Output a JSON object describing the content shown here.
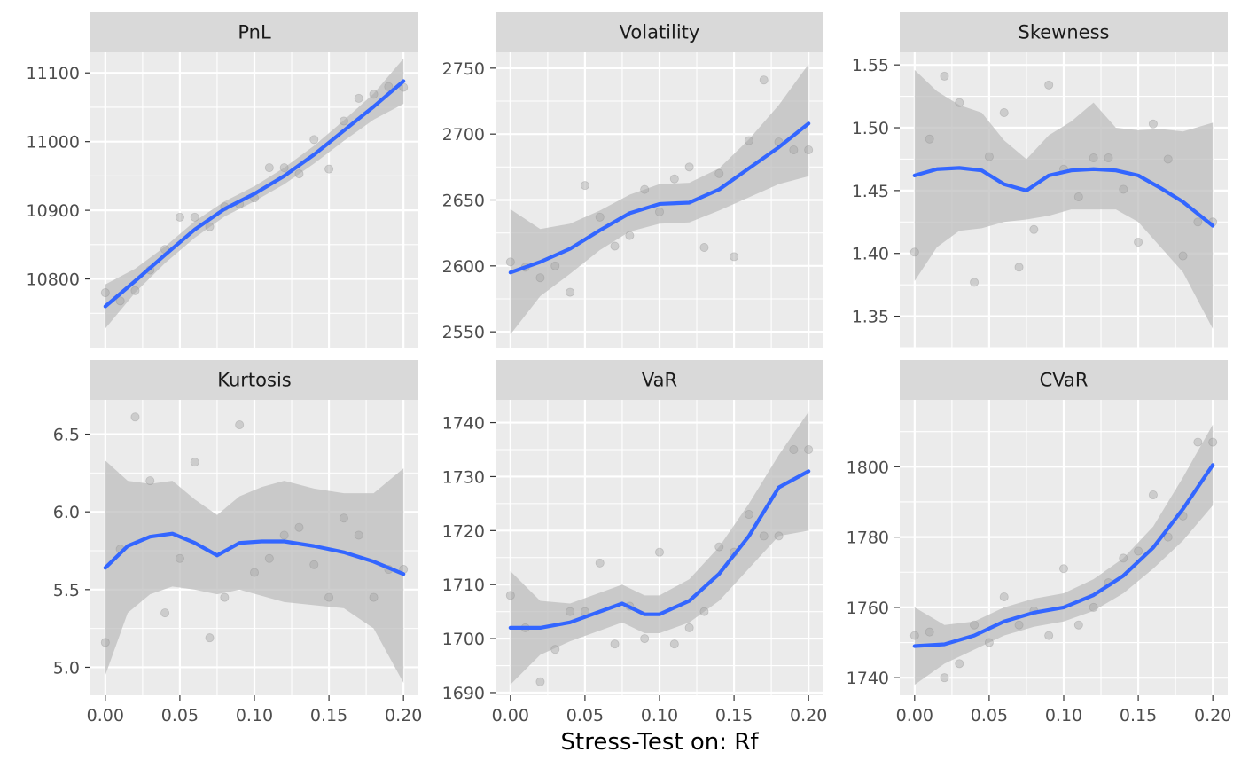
{
  "figure": {
    "xlabel": "Stress-Test on: Rf"
  },
  "colors": {
    "panel_bg": "#EBEBEB",
    "strip_bg": "#D9D9D9",
    "grid": "#FFFFFF",
    "smooth_line": "#3366FF",
    "ribbon": "#BDBDBD",
    "points": "#A6A6A6",
    "tick_text": "#4D4D4D"
  },
  "chart_data": [
    {
      "type": "scatter",
      "title": "PnL",
      "xlim": [
        -0.01,
        0.21
      ],
      "ylim": [
        10700,
        11130
      ],
      "x_ticks": [
        0.0,
        0.05,
        0.1,
        0.15,
        0.2
      ],
      "x_tick_labels": [
        "0.00",
        "0.05",
        "0.10",
        "0.15",
        "0.20"
      ],
      "y_ticks": [
        10800,
        10900,
        11000,
        11100
      ],
      "y_tick_labels": [
        "10800",
        "10900",
        "11000",
        "11100"
      ],
      "points": {
        "x": [
          0.0,
          0.01,
          0.02,
          0.03,
          0.04,
          0.05,
          0.06,
          0.07,
          0.08,
          0.09,
          0.1,
          0.11,
          0.12,
          0.13,
          0.14,
          0.15,
          0.16,
          0.17,
          0.18,
          0.19,
          0.2
        ],
        "y": [
          10780,
          10768,
          10783,
          10813,
          10843,
          10890,
          10890,
          10876,
          10905,
          10909,
          10918,
          10962,
          10962,
          10953,
          11003,
          10960,
          11030,
          11063,
          11069,
          11080,
          11079
        ]
      },
      "smooth": {
        "x": [
          0.0,
          0.02,
          0.04,
          0.06,
          0.08,
          0.1,
          0.12,
          0.14,
          0.16,
          0.18,
          0.2
        ],
        "y": [
          10760,
          10797,
          10835,
          10872,
          10902,
          10924,
          10950,
          10981,
          11016,
          11051,
          11088
        ],
        "lower": [
          10728,
          10780,
          10823,
          10860,
          10891,
          10913,
          10938,
          10968,
          11001,
          11032,
          11055
        ],
        "upper": [
          10792,
          10815,
          10847,
          10884,
          10913,
          10935,
          10962,
          10994,
          11031,
          11070,
          11121
        ]
      }
    },
    {
      "type": "scatter",
      "title": "Volatility",
      "xlim": [
        -0.01,
        0.21
      ],
      "ylim": [
        2538,
        2762
      ],
      "x_ticks": [
        0.0,
        0.05,
        0.1,
        0.15,
        0.2
      ],
      "x_tick_labels": [
        "0.00",
        "0.05",
        "0.10",
        "0.15",
        "0.20"
      ],
      "y_ticks": [
        2550,
        2600,
        2650,
        2700,
        2750
      ],
      "y_tick_labels": [
        "2550",
        "2600",
        "2650",
        "2700",
        "2750"
      ],
      "points": {
        "x": [
          0.0,
          0.01,
          0.02,
          0.03,
          0.04,
          0.05,
          0.06,
          0.07,
          0.08,
          0.09,
          0.1,
          0.11,
          0.12,
          0.13,
          0.14,
          0.15,
          0.16,
          0.17,
          0.18,
          0.19,
          0.2
        ],
        "y": [
          2603,
          2599,
          2591,
          2600,
          2580,
          2661,
          2637,
          2615,
          2623,
          2658,
          2641,
          2666,
          2675,
          2614,
          2670,
          2607,
          2695,
          2741,
          2694,
          2688,
          2688
        ]
      },
      "smooth": {
        "x": [
          0.0,
          0.02,
          0.04,
          0.06,
          0.08,
          0.1,
          0.12,
          0.14,
          0.16,
          0.18,
          0.2
        ],
        "y": [
          2595,
          2603,
          2613,
          2627,
          2640,
          2647,
          2648,
          2658,
          2674,
          2690,
          2708
        ],
        "lower": [
          2548,
          2577,
          2594,
          2612,
          2626,
          2632,
          2633,
          2642,
          2652,
          2662,
          2668
        ],
        "upper": [
          2643,
          2628,
          2632,
          2642,
          2654,
          2662,
          2663,
          2674,
          2696,
          2722,
          2753
        ]
      }
    },
    {
      "type": "scatter",
      "title": "Skewness",
      "xlim": [
        -0.01,
        0.21
      ],
      "ylim": [
        1.325,
        1.56
      ],
      "x_ticks": [
        0.0,
        0.05,
        0.1,
        0.15,
        0.2
      ],
      "x_tick_labels": [
        "0.00",
        "0.05",
        "0.10",
        "0.15",
        "0.20"
      ],
      "y_ticks": [
        1.35,
        1.4,
        1.45,
        1.5,
        1.55
      ],
      "y_tick_labels": [
        "1.35",
        "1.40",
        "1.45",
        "1.50",
        "1.55"
      ],
      "points": {
        "x": [
          0.0,
          0.01,
          0.02,
          0.03,
          0.04,
          0.05,
          0.06,
          0.07,
          0.08,
          0.09,
          0.1,
          0.11,
          0.12,
          0.13,
          0.14,
          0.15,
          0.16,
          0.17,
          0.18,
          0.19,
          0.2
        ],
        "y": [
          1.401,
          1.491,
          1.541,
          1.52,
          1.377,
          1.477,
          1.512,
          1.389,
          1.419,
          1.534,
          1.467,
          1.445,
          1.476,
          1.476,
          1.451,
          1.409,
          1.503,
          1.475,
          1.398,
          1.425,
          1.425
        ]
      },
      "smooth": {
        "x": [
          0.0,
          0.015,
          0.03,
          0.045,
          0.06,
          0.075,
          0.09,
          0.105,
          0.12,
          0.135,
          0.15,
          0.165,
          0.18,
          0.2
        ],
        "y": [
          1.462,
          1.467,
          1.468,
          1.466,
          1.455,
          1.45,
          1.462,
          1.466,
          1.467,
          1.466,
          1.462,
          1.452,
          1.441,
          1.422
        ],
        "lower": [
          1.378,
          1.405,
          1.418,
          1.42,
          1.425,
          1.427,
          1.43,
          1.435,
          1.435,
          1.435,
          1.425,
          1.405,
          1.385,
          1.34
        ],
        "upper": [
          1.546,
          1.529,
          1.518,
          1.512,
          1.49,
          1.475,
          1.494,
          1.505,
          1.52,
          1.5,
          1.498,
          1.499,
          1.497,
          1.504
        ]
      }
    },
    {
      "type": "scatter",
      "title": "Kurtosis",
      "xlim": [
        -0.01,
        0.21
      ],
      "ylim": [
        4.82,
        6.72
      ],
      "x_ticks": [
        0.0,
        0.05,
        0.1,
        0.15,
        0.2
      ],
      "x_tick_labels": [
        "0.00",
        "0.05",
        "0.10",
        "0.15",
        "0.20"
      ],
      "y_ticks": [
        5.0,
        5.5,
        6.0,
        6.5
      ],
      "y_tick_labels": [
        "5.0",
        "5.5",
        "6.0",
        "6.5"
      ],
      "points": {
        "x": [
          0.0,
          0.01,
          0.02,
          0.03,
          0.04,
          0.05,
          0.06,
          0.07,
          0.08,
          0.09,
          0.1,
          0.11,
          0.12,
          0.13,
          0.14,
          0.15,
          0.16,
          0.17,
          0.18,
          0.19,
          0.2
        ],
        "y": [
          5.16,
          5.76,
          6.61,
          6.2,
          5.35,
          5.7,
          6.32,
          5.19,
          5.45,
          6.56,
          5.61,
          5.7,
          5.85,
          5.9,
          5.66,
          5.45,
          5.96,
          5.85,
          5.45,
          5.63,
          5.63
        ]
      },
      "smooth": {
        "x": [
          0.0,
          0.015,
          0.03,
          0.045,
          0.06,
          0.075,
          0.09,
          0.105,
          0.12,
          0.14,
          0.16,
          0.18,
          0.2
        ],
        "y": [
          5.64,
          5.78,
          5.84,
          5.86,
          5.8,
          5.72,
          5.8,
          5.81,
          5.81,
          5.78,
          5.74,
          5.68,
          5.6
        ],
        "lower": [
          4.95,
          5.35,
          5.47,
          5.52,
          5.5,
          5.47,
          5.5,
          5.46,
          5.42,
          5.4,
          5.38,
          5.25,
          4.9
        ],
        "upper": [
          6.33,
          6.2,
          6.18,
          6.2,
          6.08,
          5.98,
          6.1,
          6.16,
          6.2,
          6.15,
          6.12,
          6.12,
          6.28
        ]
      }
    },
    {
      "type": "scatter",
      "title": "VaR",
      "xlim": [
        -0.01,
        0.21
      ],
      "ylim": [
        1689.5,
        1744.2
      ],
      "x_ticks": [
        0.0,
        0.05,
        0.1,
        0.15,
        0.2
      ],
      "x_tick_labels": [
        "0.00",
        "0.05",
        "0.10",
        "0.15",
        "0.20"
      ],
      "y_ticks": [
        1690,
        1700,
        1710,
        1720,
        1730,
        1740
      ],
      "y_tick_labels": [
        "1690",
        "1700",
        "1710",
        "1720",
        "1730",
        "1740"
      ],
      "points": {
        "x": [
          0.0,
          0.01,
          0.02,
          0.03,
          0.04,
          0.05,
          0.06,
          0.07,
          0.08,
          0.09,
          0.1,
          0.11,
          0.12,
          0.13,
          0.14,
          0.15,
          0.16,
          0.17,
          0.18,
          0.19,
          0.2
        ],
        "y": [
          1708,
          1702,
          1692,
          1698,
          1705,
          1705,
          1714,
          1699,
          1706,
          1700,
          1716,
          1699,
          1702,
          1705,
          1717,
          1716,
          1723,
          1719,
          1719,
          1735,
          1735
        ]
      },
      "smooth": {
        "x": [
          0.0,
          0.02,
          0.04,
          0.06,
          0.075,
          0.09,
          0.1,
          0.12,
          0.14,
          0.16,
          0.18,
          0.2
        ],
        "y": [
          1702,
          1702,
          1703,
          1705,
          1706.5,
          1704.5,
          1704.5,
          1707,
          1712,
          1719,
          1728,
          1731
        ],
        "lower": [
          1691.5,
          1697,
          1699.5,
          1701.5,
          1703,
          1701,
          1701,
          1703,
          1707,
          1713,
          1719,
          1720
        ],
        "upper": [
          1712.5,
          1707,
          1706.5,
          1708.5,
          1710,
          1708,
          1708,
          1711,
          1717,
          1725,
          1734,
          1742
        ]
      }
    },
    {
      "type": "scatter",
      "title": "CVaR",
      "xlim": [
        -0.01,
        0.21
      ],
      "ylim": [
        1735,
        1819
      ],
      "x_ticks": [
        0.0,
        0.05,
        0.1,
        0.15,
        0.2
      ],
      "x_tick_labels": [
        "0.00",
        "0.05",
        "0.10",
        "0.15",
        "0.20"
      ],
      "y_ticks": [
        1740,
        1760,
        1780,
        1800
      ],
      "y_tick_labels": [
        "1740",
        "1760",
        "1780",
        "1800"
      ],
      "points": {
        "x": [
          0.0,
          0.01,
          0.02,
          0.03,
          0.04,
          0.05,
          0.06,
          0.07,
          0.08,
          0.09,
          0.1,
          0.11,
          0.12,
          0.13,
          0.14,
          0.15,
          0.16,
          0.17,
          0.18,
          0.19,
          0.2
        ],
        "y": [
          1752,
          1753,
          1740,
          1744,
          1755,
          1750,
          1763,
          1755,
          1759,
          1752,
          1771,
          1755,
          1760,
          1767,
          1774,
          1776,
          1792,
          1780,
          1786,
          1807,
          1807
        ]
      },
      "smooth": {
        "x": [
          0.0,
          0.02,
          0.04,
          0.06,
          0.08,
          0.1,
          0.12,
          0.14,
          0.16,
          0.18,
          0.2
        ],
        "y": [
          1749,
          1749.5,
          1752,
          1756,
          1758.5,
          1760,
          1763.5,
          1769,
          1777,
          1788,
          1800.5
        ],
        "lower": [
          1738,
          1744,
          1748,
          1752,
          1754.5,
          1756,
          1759,
          1764,
          1771,
          1779,
          1789
        ],
        "upper": [
          1760,
          1755,
          1756,
          1760,
          1762.5,
          1764,
          1768,
          1774,
          1783,
          1797,
          1812
        ]
      }
    }
  ]
}
